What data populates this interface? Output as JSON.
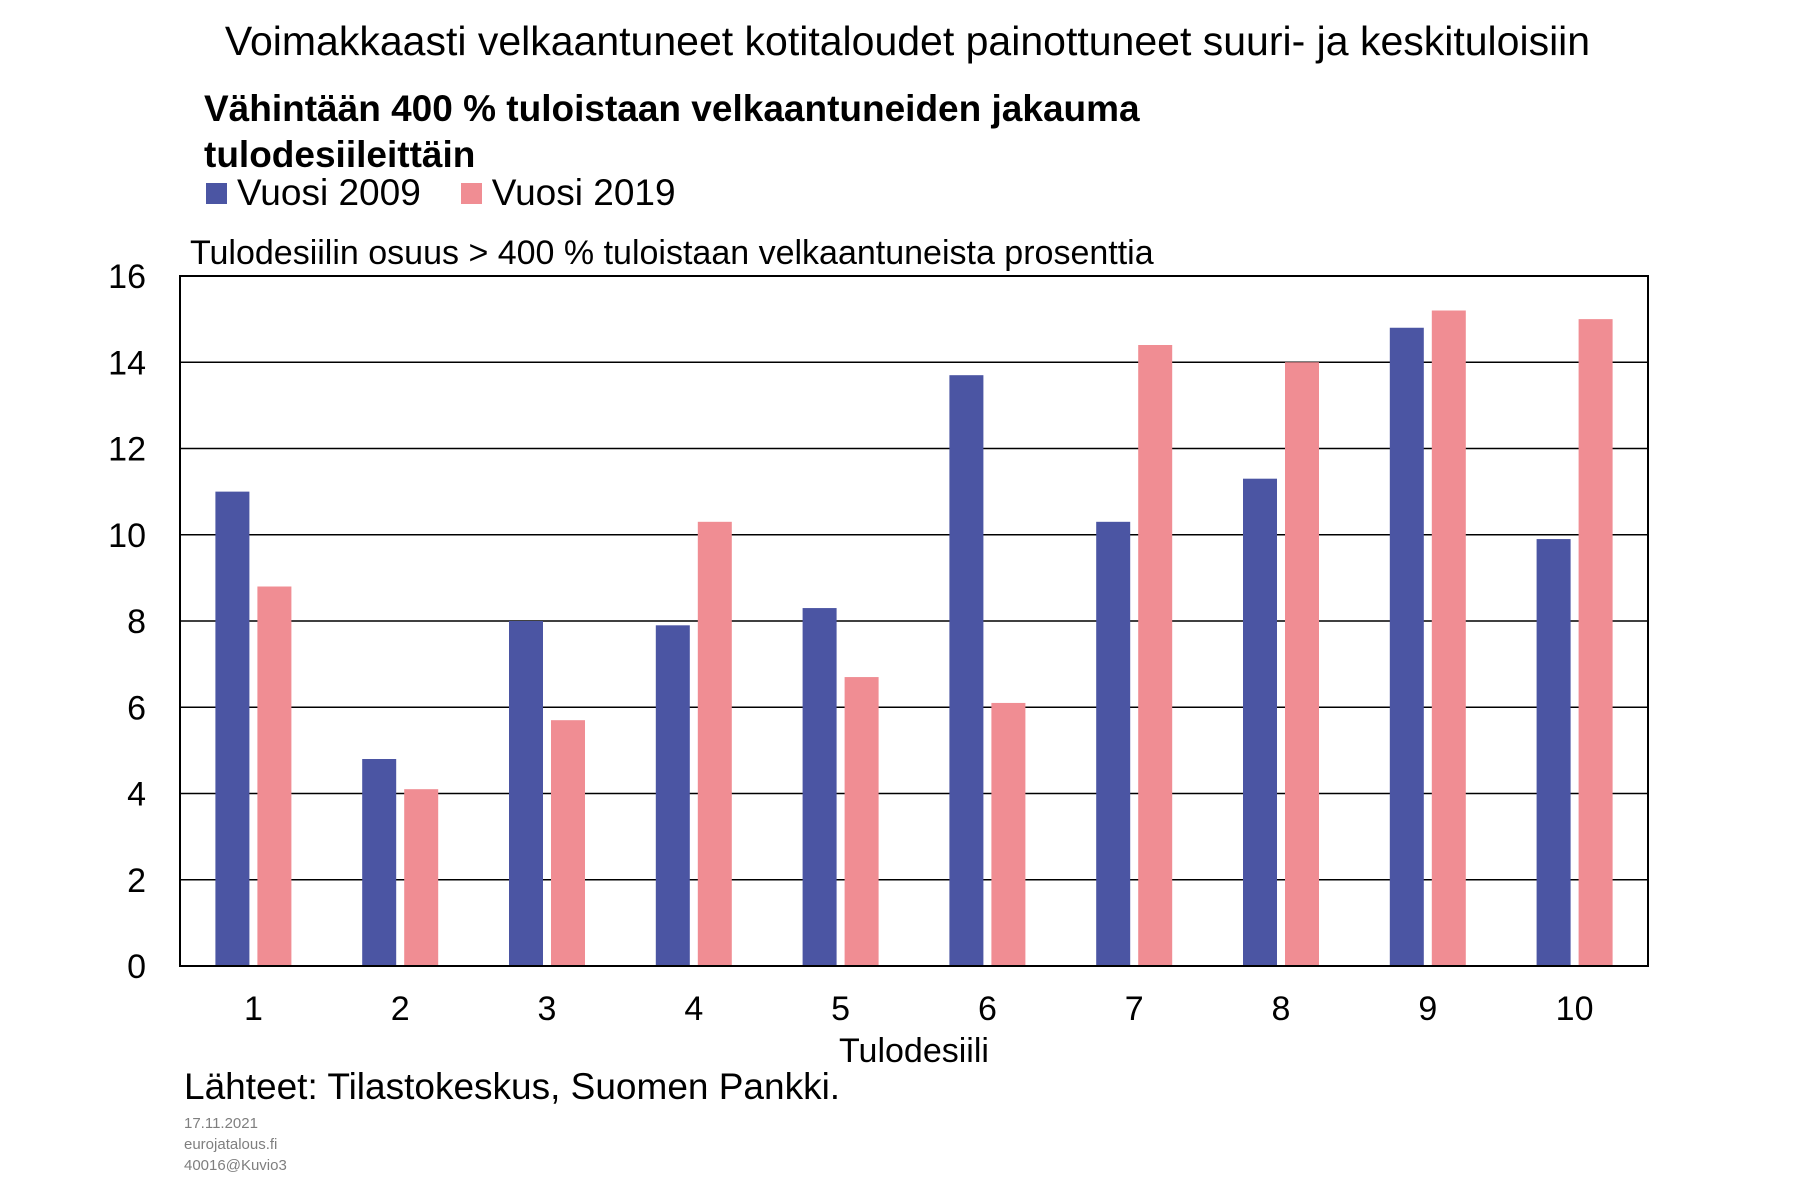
{
  "chart_data": {
    "type": "bar",
    "title": "Voimakkaasti velkaantuneet kotitaloudet painottuneet suuri- ja keskituloisiin",
    "subtitle": "Vähintään 400 % tuloistaan velkaantuneiden jakauma tulodesiileittäin",
    "ylabel": "Tulodesiilin osuus > 400 % tuloistaan velkaantuneista prosenttia",
    "xlabel": "Tulodesiili",
    "categories": [
      "1",
      "2",
      "3",
      "4",
      "5",
      "6",
      "7",
      "8",
      "9",
      "10"
    ],
    "series": [
      {
        "name": "Vuosi 2009",
        "color": "#4b55a3",
        "values": [
          11.0,
          4.8,
          8.0,
          7.9,
          8.3,
          13.7,
          10.3,
          11.3,
          14.8,
          9.9
        ]
      },
      {
        "name": "Vuosi 2019",
        "color": "#f08d93",
        "values": [
          8.8,
          4.1,
          5.7,
          10.3,
          6.7,
          6.1,
          14.4,
          14.0,
          15.2,
          15.0
        ]
      }
    ],
    "ylim": [
      0,
      16
    ],
    "yticks": [
      0,
      2,
      4,
      6,
      8,
      10,
      12,
      14,
      16
    ],
    "grid": true,
    "legend_position": "top-left"
  },
  "source": "Lähteet: Tilastokeskus, Suomen Pankki.",
  "footer": {
    "date": "17.11.2021",
    "site": "eurojatalous.fi",
    "code": "40016@Kuvio3"
  }
}
